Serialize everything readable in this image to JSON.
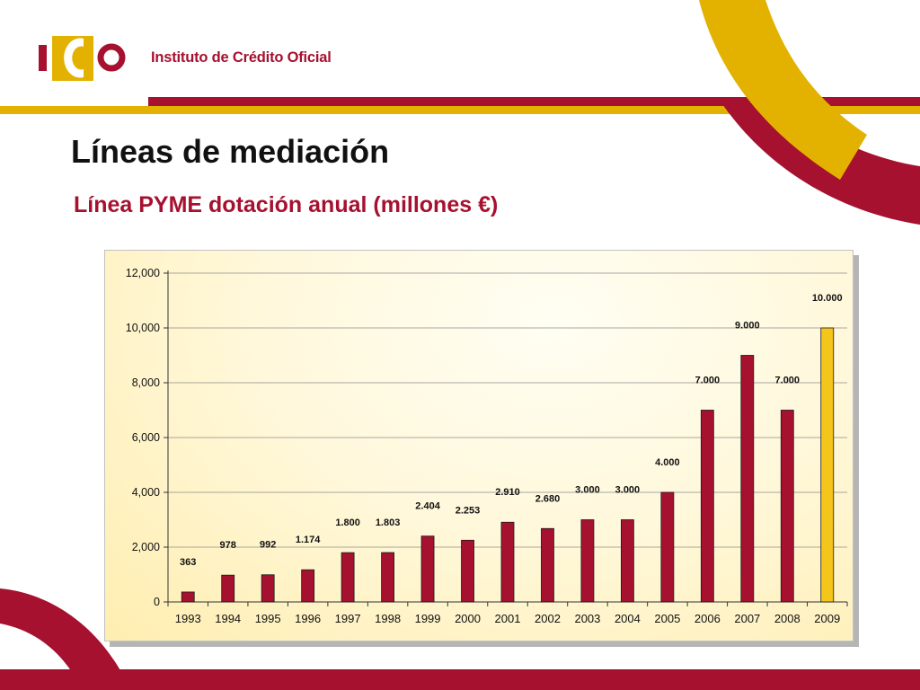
{
  "header": {
    "logo_text": "Instituto de Crédito Oficial",
    "logo_colors": {
      "red": "#a6112f",
      "gold": "#e3b100"
    }
  },
  "slide": {
    "title": "Líneas de mediación",
    "subtitle": "Línea PYME dotación anual (millones €)"
  },
  "chart_data": {
    "type": "bar",
    "categories": [
      "1993",
      "1994",
      "1995",
      "1996",
      "1997",
      "1998",
      "1999",
      "2000",
      "2001",
      "2002",
      "2003",
      "2004",
      "2005",
      "2006",
      "2007",
      "2008",
      "2009"
    ],
    "values": [
      363,
      978,
      992,
      1174,
      1800,
      1803,
      2404,
      2253,
      2910,
      2680,
      3000,
      3000,
      4000,
      7000,
      9000,
      7000,
      10000
    ],
    "data_labels": [
      "363",
      "978",
      "992",
      "1.174",
      "1.800",
      "1.803",
      "2.404",
      "2.253",
      "2.910",
      "2.680",
      "3.000",
      "3.000",
      "4.000",
      "7.000",
      "9.000",
      "7.000",
      "10.000"
    ],
    "ylim": [
      0,
      12000
    ],
    "yticks": [
      0,
      2000,
      4000,
      6000,
      8000,
      10000,
      12000
    ],
    "ytick_labels": [
      "0",
      "2,000",
      "4,000",
      "6,000",
      "8,000",
      "10,000",
      "12,000"
    ],
    "title": "",
    "xlabel": "",
    "ylabel": "",
    "grid": true,
    "legend": "none",
    "bar_color": "#a6112f",
    "highlight_index": 16,
    "highlight_color": "#f4c51a"
  }
}
